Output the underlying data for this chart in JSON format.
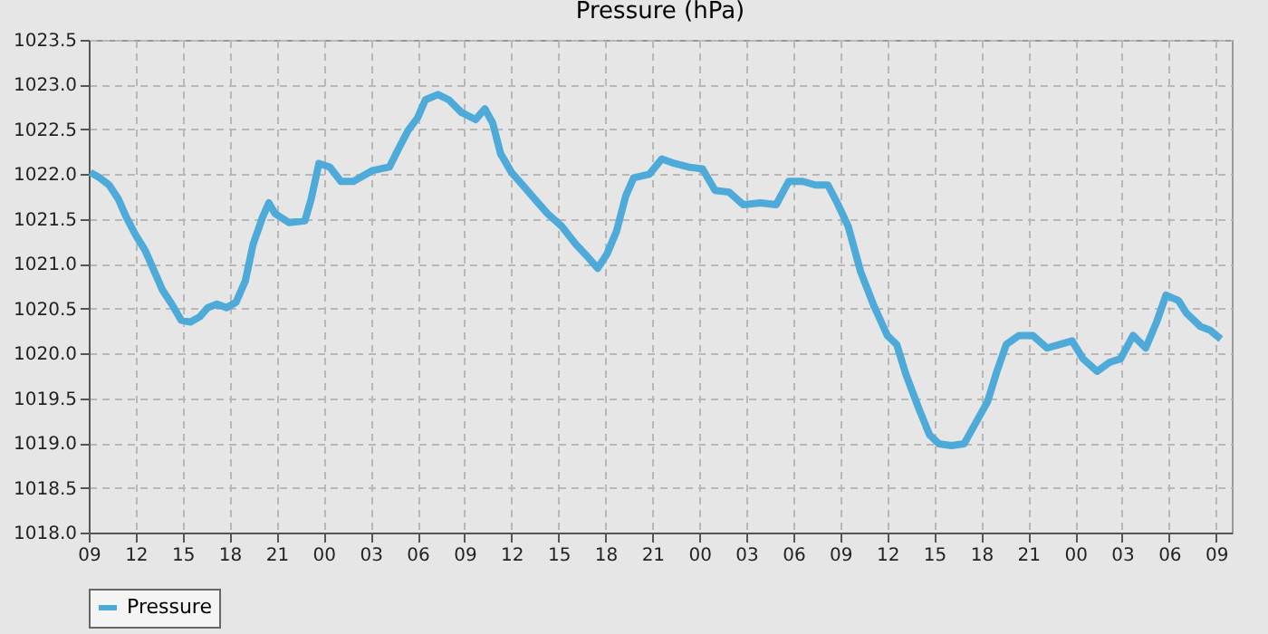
{
  "chart_data": {
    "type": "line",
    "title": "Pressure (hPa)",
    "x": [
      9.1,
      9.7,
      10.3,
      10.9,
      11.4,
      12.0,
      12.6,
      13.2,
      13.7,
      14.3,
      14.9,
      15.5,
      16.1,
      16.6,
      17.2,
      17.8,
      18.4,
      19.0,
      19.5,
      20.1,
      20.5,
      20.9,
      21.8,
      22.8,
      23.2,
      23.7,
      24.4,
      25.1,
      25.9,
      27.1,
      28.2,
      28.8,
      29.4,
      30.0,
      30.5,
      31.3,
      32.0,
      32.8,
      33.7,
      34.3,
      34.8,
      35.3,
      36.0,
      36.7,
      37.5,
      38.3,
      39.2,
      40.1,
      40.9,
      41.5,
      42.1,
      42.7,
      43.3,
      43.8,
      44.8,
      45.6,
      46.4,
      47.3,
      48.2,
      49.0,
      49.9,
      50.8,
      51.9,
      52.9,
      53.7,
      54.6,
      55.4,
      56.2,
      56.8,
      57.5,
      58.3,
      59.1,
      60.0,
      60.6,
      61.2,
      62.0,
      62.7,
      63.3,
      64.1,
      64.9,
      65.6,
      66.4,
      67.0,
      67.6,
      68.4,
      69.3,
      70.2,
      71.0,
      71.8,
      72.5,
      73.4,
      74.2,
      74.9,
      75.7,
      76.5,
      77.2,
      77.8,
      78.6,
      79.1,
      80.0,
      80.6,
      81.3
    ],
    "series": [
      {
        "name": "Pressure",
        "color": "#4eaad9",
        "values": [
          1022.02,
          1021.96,
          1021.88,
          1021.72,
          1021.52,
          1021.32,
          1021.15,
          1020.91,
          1020.71,
          1020.55,
          1020.37,
          1020.35,
          1020.41,
          1020.51,
          1020.55,
          1020.51,
          1020.57,
          1020.81,
          1021.22,
          1021.52,
          1021.68,
          1021.56,
          1021.46,
          1021.48,
          1021.72,
          1022.12,
          1022.08,
          1021.92,
          1021.92,
          1022.04,
          1022.08,
          1022.29,
          1022.49,
          1022.63,
          1022.83,
          1022.89,
          1022.83,
          1022.69,
          1022.61,
          1022.73,
          1022.57,
          1022.23,
          1022.02,
          1021.88,
          1021.72,
          1021.56,
          1021.42,
          1021.22,
          1021.07,
          1020.95,
          1021.11,
          1021.36,
          1021.76,
          1021.96,
          1022.0,
          1022.17,
          1022.12,
          1022.08,
          1022.06,
          1021.82,
          1021.8,
          1021.66,
          1021.68,
          1021.66,
          1021.92,
          1021.92,
          1021.88,
          1021.88,
          1021.68,
          1021.42,
          1020.91,
          1020.55,
          1020.2,
          1020.1,
          1019.76,
          1019.39,
          1019.09,
          1018.99,
          1018.97,
          1018.99,
          1019.21,
          1019.46,
          1019.8,
          1020.1,
          1020.2,
          1020.2,
          1020.06,
          1020.1,
          1020.14,
          1019.94,
          1019.8,
          1019.9,
          1019.94,
          1020.2,
          1020.06,
          1020.35,
          1020.65,
          1020.59,
          1020.45,
          1020.3,
          1020.26,
          1020.16
        ]
      }
    ],
    "xlim": [
      9,
      82
    ],
    "xticks": [
      {
        "value": 9,
        "label": "09"
      },
      {
        "value": 12,
        "label": "12"
      },
      {
        "value": 15,
        "label": "15"
      },
      {
        "value": 18,
        "label": "18"
      },
      {
        "value": 21,
        "label": "21"
      },
      {
        "value": 24,
        "label": "00"
      },
      {
        "value": 27,
        "label": "03"
      },
      {
        "value": 30,
        "label": "06"
      },
      {
        "value": 33,
        "label": "09"
      },
      {
        "value": 36,
        "label": "12"
      },
      {
        "value": 39,
        "label": "15"
      },
      {
        "value": 42,
        "label": "18"
      },
      {
        "value": 45,
        "label": "21"
      },
      {
        "value": 48,
        "label": "00"
      },
      {
        "value": 51,
        "label": "03"
      },
      {
        "value": 54,
        "label": "06"
      },
      {
        "value": 57,
        "label": "09"
      },
      {
        "value": 60,
        "label": "12"
      },
      {
        "value": 63,
        "label": "15"
      },
      {
        "value": 66,
        "label": "18"
      },
      {
        "value": 69,
        "label": "21"
      },
      {
        "value": 72,
        "label": "00"
      },
      {
        "value": 75,
        "label": "03"
      },
      {
        "value": 78,
        "label": "06"
      },
      {
        "value": 81,
        "label": "09"
      }
    ],
    "ylim": [
      1018.0,
      1023.5
    ],
    "yticks": [
      {
        "value": 1018.0,
        "label": "1018.0"
      },
      {
        "value": 1018.5,
        "label": "1018.5"
      },
      {
        "value": 1019.0,
        "label": "1019.0"
      },
      {
        "value": 1019.5,
        "label": "1019.5"
      },
      {
        "value": 1020.0,
        "label": "1020.0"
      },
      {
        "value": 1020.5,
        "label": "1020.5"
      },
      {
        "value": 1021.0,
        "label": "1021.0"
      },
      {
        "value": 1021.5,
        "label": "1021.5"
      },
      {
        "value": 1022.0,
        "label": "1022.0"
      },
      {
        "value": 1022.5,
        "label": "1022.5"
      },
      {
        "value": 1023.0,
        "label": "1023.0"
      },
      {
        "value": 1023.5,
        "label": "1023.5"
      }
    ],
    "grid": true,
    "legend": "bottom",
    "line_style": "solid",
    "marker": "none"
  }
}
